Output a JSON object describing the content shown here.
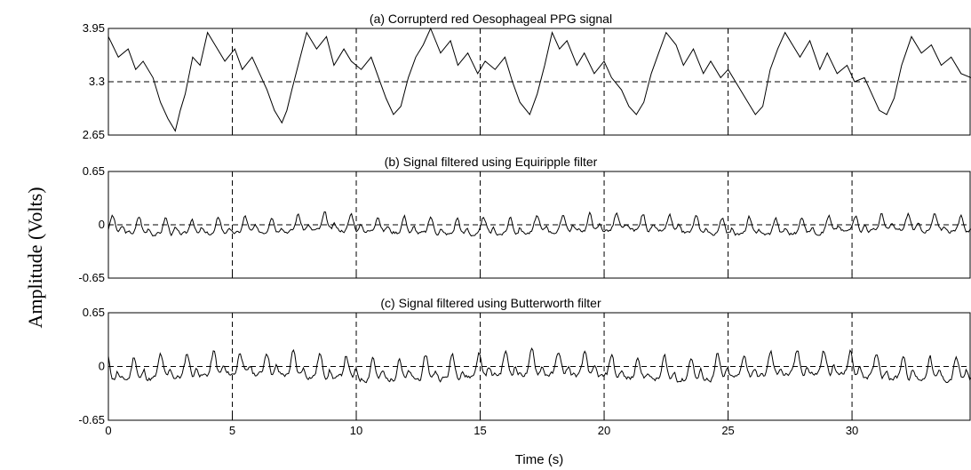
{
  "figure": {
    "ylabel": "Amplitude (Volts)",
    "xlabel": "Time (s)"
  },
  "chart_data": [
    {
      "type": "line",
      "title": "(a) Corrupterd red Oesophageal PPG signal",
      "xlim": [
        0,
        34.8
      ],
      "ylim": [
        2.65,
        3.95
      ],
      "xticks": [
        0,
        5,
        10,
        15,
        20,
        25,
        30
      ],
      "xtick_labels": [
        "",
        "",
        "",
        "",
        "",
        "",
        ""
      ],
      "yticks": [
        2.65,
        3.3,
        3.95
      ],
      "ytick_labels": [
        "2.65",
        "3.3",
        "3.95"
      ],
      "grid": "dashed",
      "series": [
        {
          "x": [
            0,
            0.4,
            0.8,
            1.1,
            1.4,
            1.8,
            2.1,
            2.4,
            2.7,
            2.9,
            3.1,
            3.4,
            3.7,
            4.0,
            4.3,
            4.7,
            5.1,
            5.4,
            5.8,
            6.1,
            6.4,
            6.7,
            7.0,
            7.2,
            7.4,
            7.7,
            8.0,
            8.4,
            8.8,
            9.1,
            9.5,
            9.8,
            10.2,
            10.6,
            10.9,
            11.2,
            11.5,
            11.8,
            12.1,
            12.4,
            12.7,
            13.0,
            13.4,
            13.8,
            14.1,
            14.5,
            14.9,
            15.2,
            15.6,
            16.0,
            16.3,
            16.6,
            17.0,
            17.3,
            17.6,
            17.9,
            18.2,
            18.5,
            18.9,
            19.2,
            19.6,
            20.0,
            20.3,
            20.7,
            21.0,
            21.3,
            21.6,
            21.9,
            22.2,
            22.5,
            22.9,
            23.2,
            23.6,
            24.0,
            24.3,
            24.7,
            25.0,
            25.4,
            25.8,
            26.1,
            26.4,
            26.7,
            27.0,
            27.3,
            27.6,
            27.9,
            28.3,
            28.7,
            29.0,
            29.4,
            29.8,
            30.1,
            30.5,
            30.8,
            31.1,
            31.4,
            31.7,
            32.0,
            32.4,
            32.8,
            33.2,
            33.6,
            34.0,
            34.4,
            34.8
          ],
          "y": [
            3.85,
            3.6,
            3.7,
            3.45,
            3.55,
            3.35,
            3.05,
            2.85,
            2.7,
            2.95,
            3.15,
            3.6,
            3.5,
            3.9,
            3.75,
            3.55,
            3.7,
            3.45,
            3.6,
            3.4,
            3.2,
            2.95,
            2.8,
            2.95,
            3.2,
            3.55,
            3.9,
            3.7,
            3.85,
            3.5,
            3.7,
            3.55,
            3.45,
            3.6,
            3.35,
            3.1,
            2.9,
            3.0,
            3.35,
            3.6,
            3.75,
            3.95,
            3.65,
            3.8,
            3.5,
            3.65,
            3.4,
            3.55,
            3.45,
            3.6,
            3.3,
            3.05,
            2.9,
            3.15,
            3.5,
            3.9,
            3.7,
            3.8,
            3.5,
            3.65,
            3.4,
            3.55,
            3.35,
            3.2,
            3.0,
            2.9,
            3.05,
            3.4,
            3.65,
            3.9,
            3.75,
            3.5,
            3.7,
            3.4,
            3.55,
            3.35,
            3.45,
            3.25,
            3.05,
            2.9,
            3.0,
            3.45,
            3.7,
            3.9,
            3.75,
            3.6,
            3.8,
            3.45,
            3.65,
            3.4,
            3.5,
            3.3,
            3.35,
            3.15,
            2.95,
            2.9,
            3.1,
            3.5,
            3.85,
            3.65,
            3.75,
            3.5,
            3.6,
            3.4,
            3.35
          ]
        }
      ]
    },
    {
      "type": "line",
      "title": "(b) Signal filtered using Equiripple filter",
      "xlim": [
        0,
        34.8
      ],
      "ylim": [
        -0.65,
        0.65
      ],
      "xticks": [
        0,
        5,
        10,
        15,
        20,
        25,
        30
      ],
      "xtick_labels": [
        "",
        "",
        "",
        "",
        "",
        "",
        ""
      ],
      "yticks": [
        -0.65,
        0,
        0.65
      ],
      "ytick_labels": [
        "-0.65",
        "0",
        "0.65"
      ],
      "grid": "dashed",
      "series": [
        {
          "period": 1.07,
          "offset": 0.1,
          "amplitude": 0.2,
          "seed": 3,
          "samples": 700
        }
      ]
    },
    {
      "type": "line",
      "title": "(c) Signal filtered using Butterworth filter",
      "xlim": [
        0,
        34.8
      ],
      "ylim": [
        -0.65,
        0.65
      ],
      "xticks": [
        0,
        5,
        10,
        15,
        20,
        25,
        30
      ],
      "xtick_labels": [
        "0",
        "5",
        "10",
        "15",
        "20",
        "25",
        "30"
      ],
      "yticks": [
        -0.65,
        0,
        0.65
      ],
      "ytick_labels": [
        "-0.65",
        "0",
        "0.65"
      ],
      "grid": "dashed",
      "series": [
        {
          "period": 1.07,
          "offset": 0.3,
          "amplitude": 0.28,
          "seed": 11,
          "samples": 700
        }
      ]
    }
  ]
}
